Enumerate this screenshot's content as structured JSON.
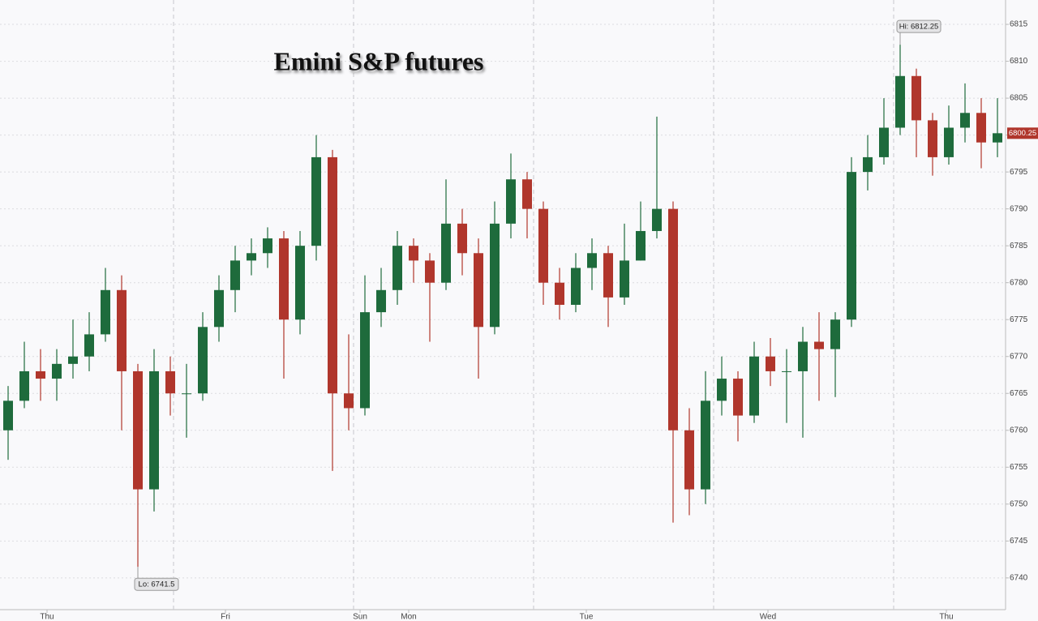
{
  "chart_data": {
    "type": "candlestick",
    "title": "Emini S&P futures",
    "up_color": "#1e6b3c",
    "down_color": "#b0362c",
    "open": [
      6760,
      6764,
      6768,
      6767,
      6769,
      6770,
      6773,
      6779,
      6768,
      6752,
      6768,
      6765,
      6765,
      6774,
      6779,
      6783,
      6784,
      6786,
      6775,
      6785,
      6797,
      6765,
      6763,
      6776,
      6779,
      6785,
      6783,
      6780,
      6788,
      6784,
      6774,
      6788,
      6794,
      6790,
      6780,
      6777,
      6782,
      6784,
      6778,
      6783,
      6787,
      6790,
      6760,
      6752,
      6764,
      6767,
      6762,
      6770,
      6768,
      6768,
      6772,
      6771,
      6775,
      6795,
      6797,
      6801,
      6808,
      6802,
      6797,
      6801,
      6803,
      6799
    ],
    "high": [
      6766,
      6772,
      6771,
      6771,
      6775,
      6776,
      6782,
      6781,
      6769,
      6771,
      6770,
      6769,
      6776,
      6781,
      6785,
      6786,
      6787.5,
      6787,
      6787,
      6800,
      6798,
      6773,
      6781,
      6782,
      6787,
      6786,
      6784,
      6794,
      6790,
      6786,
      6791,
      6797.5,
      6795,
      6791,
      6782,
      6784,
      6786,
      6785,
      6788,
      6791,
      6802.5,
      6791,
      6763,
      6768,
      6770,
      6768,
      6772,
      6772.5,
      6771,
      6774,
      6776,
      6776,
      6797,
      6800,
      6805,
      6812.25,
      6809,
      6803,
      6804,
      6807,
      6805,
      6805
    ],
    "low": [
      6756,
      6763,
      6764,
      6764,
      6767,
      6768,
      6772,
      6760,
      6741.5,
      6749,
      6762,
      6759,
      6764,
      6772,
      6776,
      6781,
      6782,
      6767,
      6773,
      6783,
      6754.5,
      6760,
      6762,
      6774,
      6777,
      6780,
      6772,
      6779,
      6781,
      6767,
      6773,
      6786,
      6786,
      6777,
      6775,
      6776,
      6779,
      6774,
      6777,
      6783,
      6786,
      6747.5,
      6748.5,
      6750,
      6762,
      6758.5,
      6761,
      6766,
      6761,
      6759,
      6764,
      6764.5,
      6774,
      6792.5,
      6796,
      6800,
      6797,
      6794.5,
      6796,
      6799,
      6795.5,
      6797
    ],
    "close": [
      6764,
      6768,
      6767,
      6769,
      6770,
      6773,
      6779,
      6768,
      6752,
      6768,
      6765,
      6765,
      6774,
      6779,
      6783,
      6784,
      6786,
      6775,
      6785,
      6797,
      6765,
      6763,
      6776,
      6779,
      6785,
      6783,
      6780,
      6788,
      6784,
      6774,
      6788,
      6794,
      6790,
      6780,
      6777,
      6782,
      6784,
      6778,
      6783,
      6787,
      6790,
      6760,
      6752,
      6764,
      6767,
      6762,
      6770,
      6768,
      6768,
      6772,
      6771,
      6775,
      6795,
      6797,
      6801,
      6808,
      6802,
      6797,
      6801,
      6803,
      6799,
      6800.25
    ],
    "xlim": [
      0,
      62
    ],
    "xticks": [
      {
        "value": 2.9,
        "label": "Thu"
      },
      {
        "value": 13.9,
        "label": "Fri"
      },
      {
        "value": 22.2,
        "label": "Sun"
      },
      {
        "value": 25.2,
        "label": "Mon"
      },
      {
        "value": 36.15,
        "label": "Tue"
      },
      {
        "value": 47.35,
        "label": "Wed"
      },
      {
        "value": 58.35,
        "label": "Thu"
      }
    ],
    "session_breaks": [
      10.7,
      21.8,
      32.9,
      44,
      55.1
    ],
    "ylim": [
      6735.7,
      6818.3
    ],
    "yticks": [
      6740,
      6745,
      6750,
      6755,
      6760,
      6765,
      6770,
      6775,
      6780,
      6785,
      6790,
      6795,
      6800,
      6805,
      6810,
      6815
    ],
    "grid": true,
    "high_marker": {
      "label": "Hi: 6812.25",
      "value": 6812.25
    },
    "low_marker": {
      "label": "Lo: 6741.5",
      "value": 6741.5
    },
    "last_price": {
      "label": "6800.25",
      "value": 6800.25
    }
  }
}
